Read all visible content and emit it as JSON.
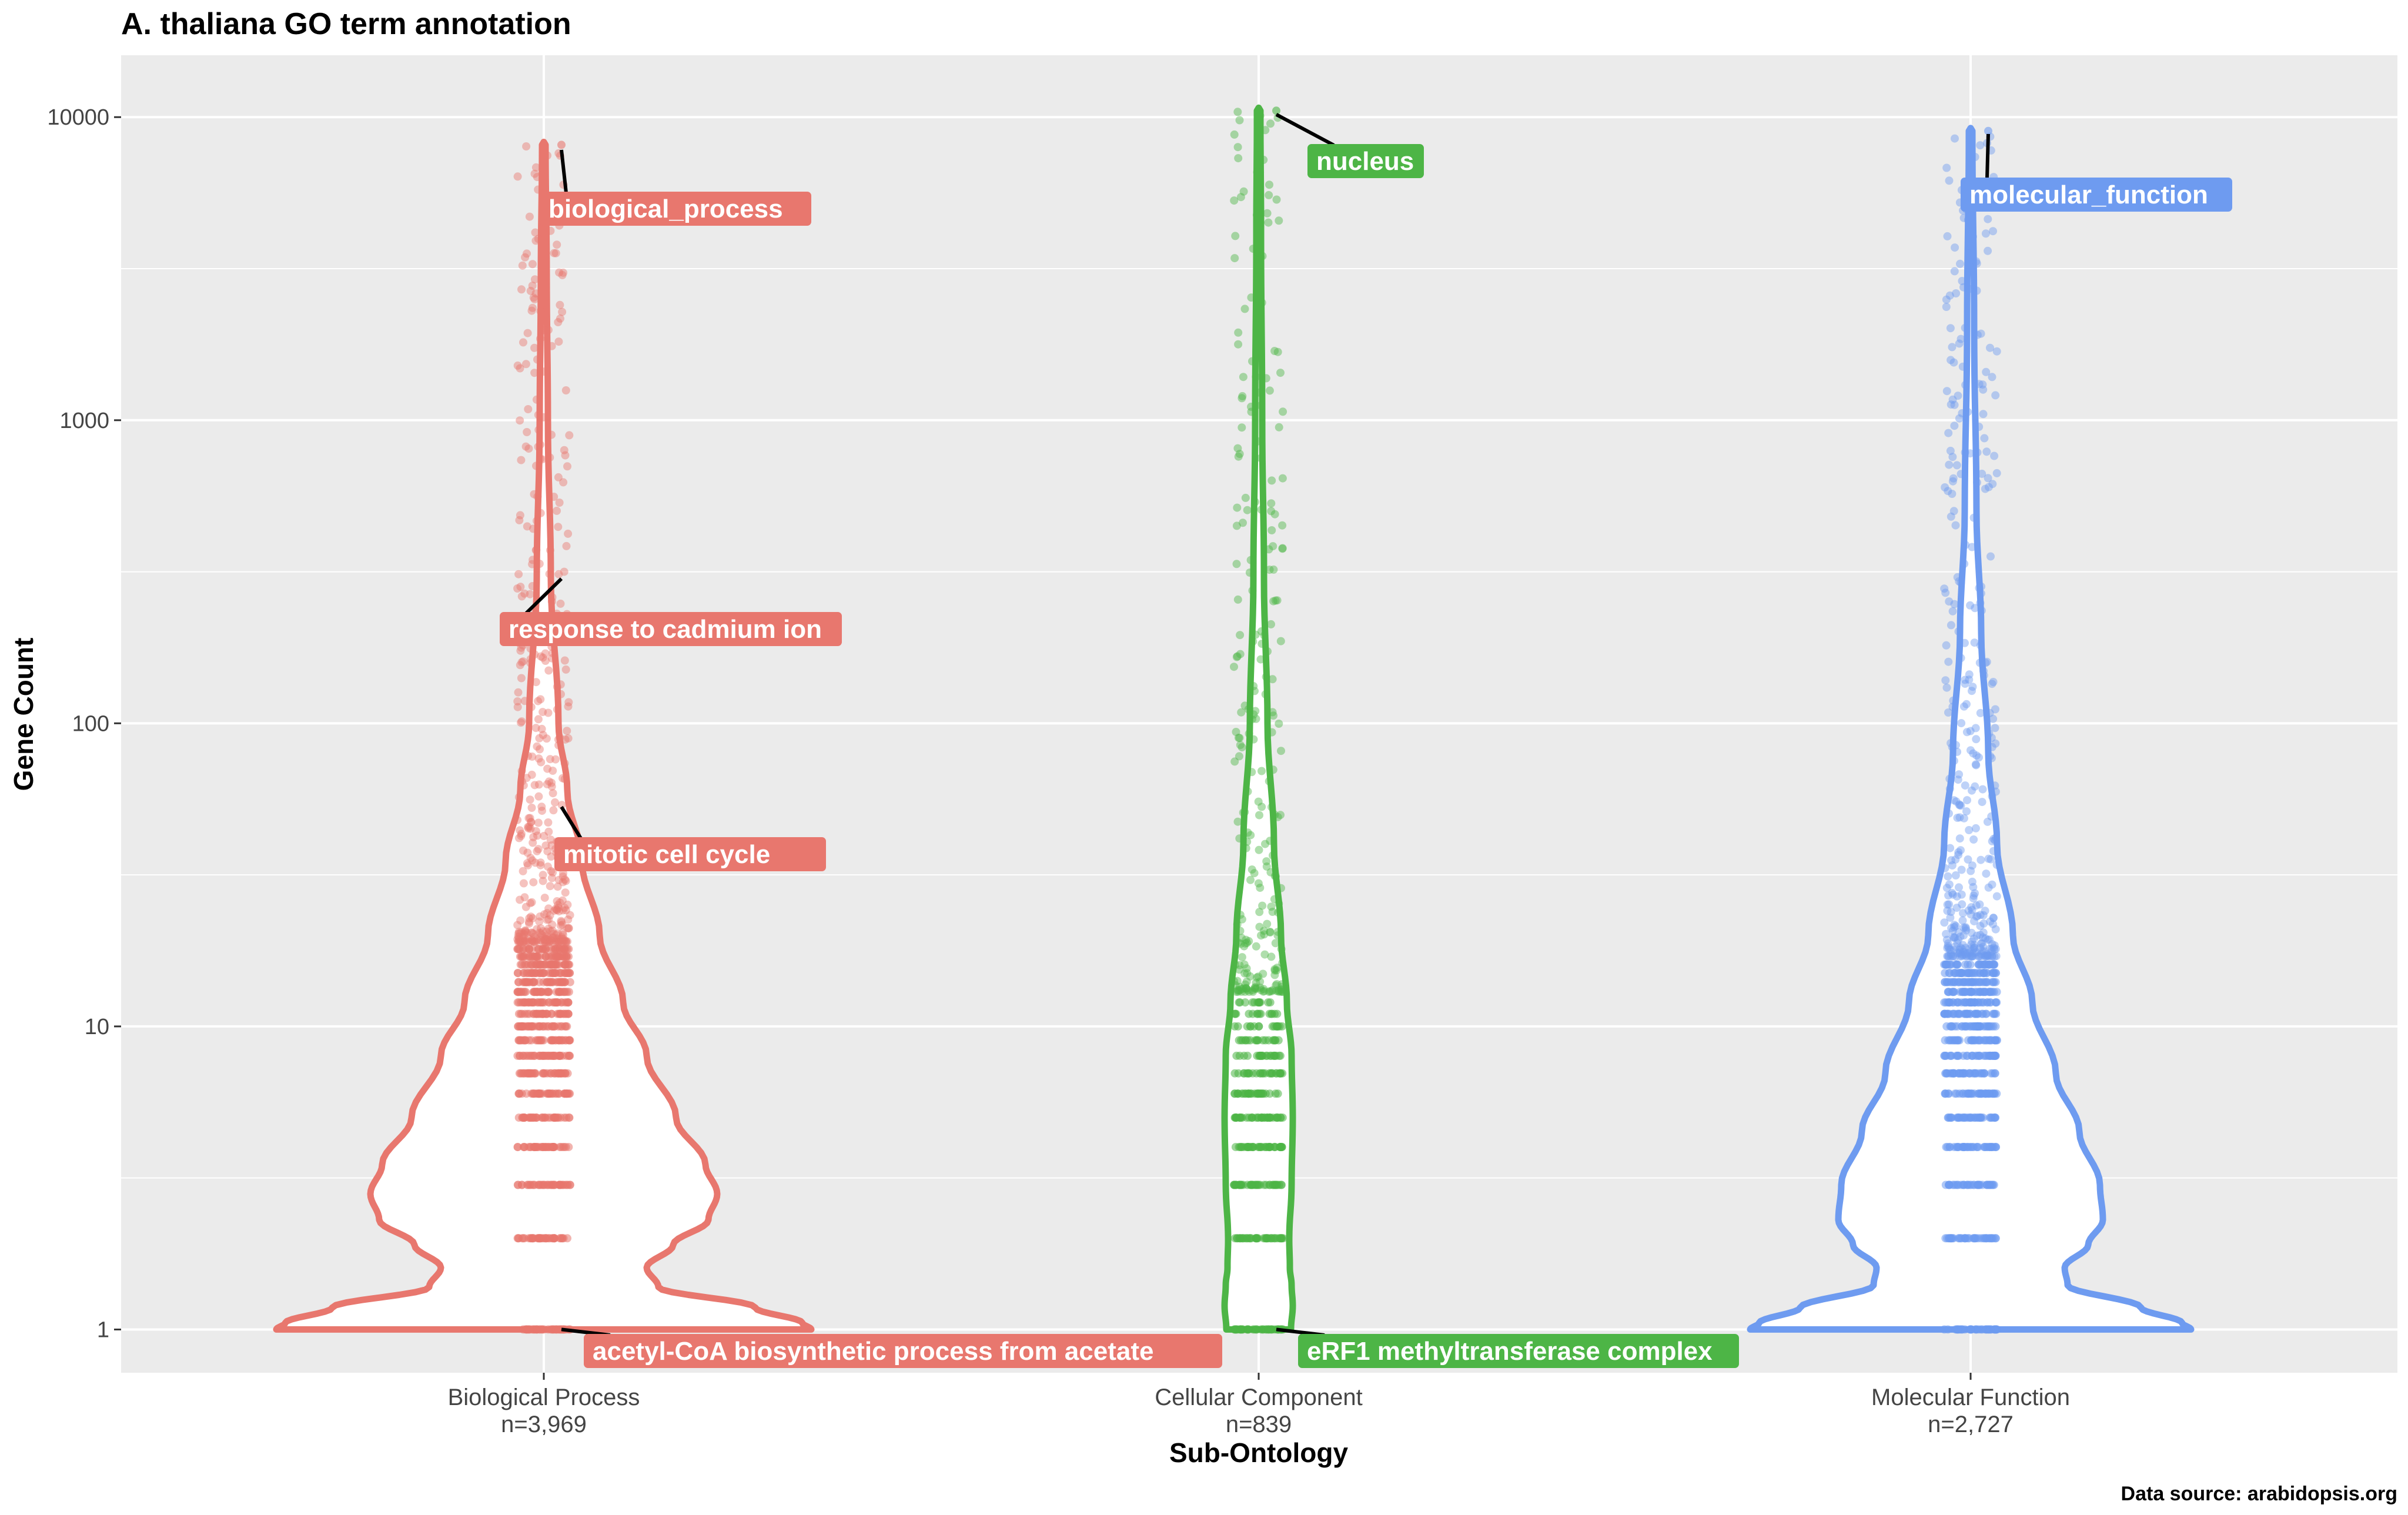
{
  "chart_data": {
    "type": "violin",
    "title": "A. thaliana GO term annotation",
    "xlabel": "Sub-Ontology",
    "ylabel": "Gene Count",
    "yscale": "log10",
    "ylim": [
      0.72,
      16000
    ],
    "yticks": [
      1,
      10,
      100,
      1000,
      10000
    ],
    "ytick_labels": [
      "1",
      "10",
      "100",
      "1000",
      "10000"
    ],
    "grid": true,
    "legend": "none",
    "caption": "Data source: arabidopsis.org",
    "categories": [
      {
        "name": "Biological Process",
        "n_label": "n=3,969",
        "color": "#E8776E",
        "max": 8100,
        "annotations": [
          {
            "label": "biological_process",
            "value": 7800
          },
          {
            "label": "response to cadmium ion",
            "value": 300
          },
          {
            "label": "mitotic cell cycle",
            "value": 53
          },
          {
            "label": "acetyl-CoA biosynthetic process from acetate",
            "value": 1
          }
        ]
      },
      {
        "name": "Cellular Component",
        "n_label": "n=839",
        "color": "#4DB546",
        "max": 10500,
        "annotations": [
          {
            "label": "nucleus",
            "value": 10200
          },
          {
            "label": "eRF1 methyltransferase complex",
            "value": 1
          }
        ]
      },
      {
        "name": "Molecular Function",
        "n_label": "n=2,727",
        "color": "#6E9BF0",
        "max": 9000,
        "annotations": [
          {
            "label": "molecular_function",
            "value": 8800
          }
        ]
      }
    ]
  }
}
